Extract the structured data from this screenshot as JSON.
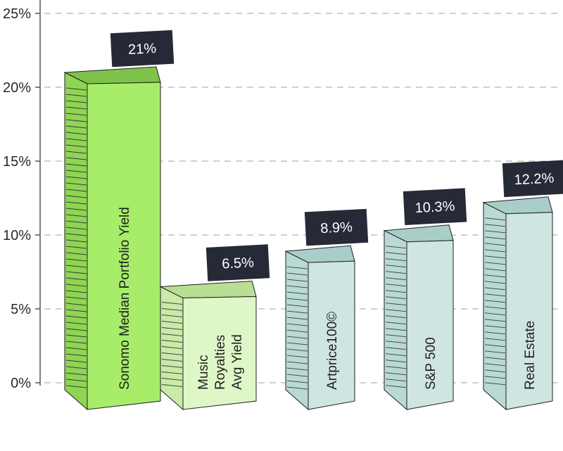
{
  "chart_data": {
    "type": "bar",
    "ylim": [
      0,
      25
    ],
    "y_ticks": [
      "0%",
      "5%",
      "10%",
      "15%",
      "20%",
      "25%"
    ],
    "grid": true,
    "categories": [
      [
        "Sonomo Median Portfolio Yield"
      ],
      [
        "Music",
        "Royalties",
        "Avg Yield"
      ],
      [
        "Artprice100©"
      ],
      [
        "S&P 500"
      ],
      [
        "Real Estate"
      ]
    ],
    "values": [
      21,
      6.5,
      8.9,
      10.3,
      12.2
    ],
    "value_labels": [
      "21%",
      "6.5%",
      "8.9%",
      "10.3%",
      "12.2%"
    ]
  },
  "colors": {
    "highlight": [
      "#a7ed6a",
      "#8fd553",
      "#7fc24a"
    ],
    "music": [
      "#dff7c6",
      "#c9eaa9",
      "#b8df93"
    ],
    "benchmark": [
      "#cfe5e2",
      "#b9d9d5",
      "#a9cdc9"
    ],
    "label_box": "#262936",
    "grid": "#b5b5b5",
    "axis": "#555555"
  }
}
